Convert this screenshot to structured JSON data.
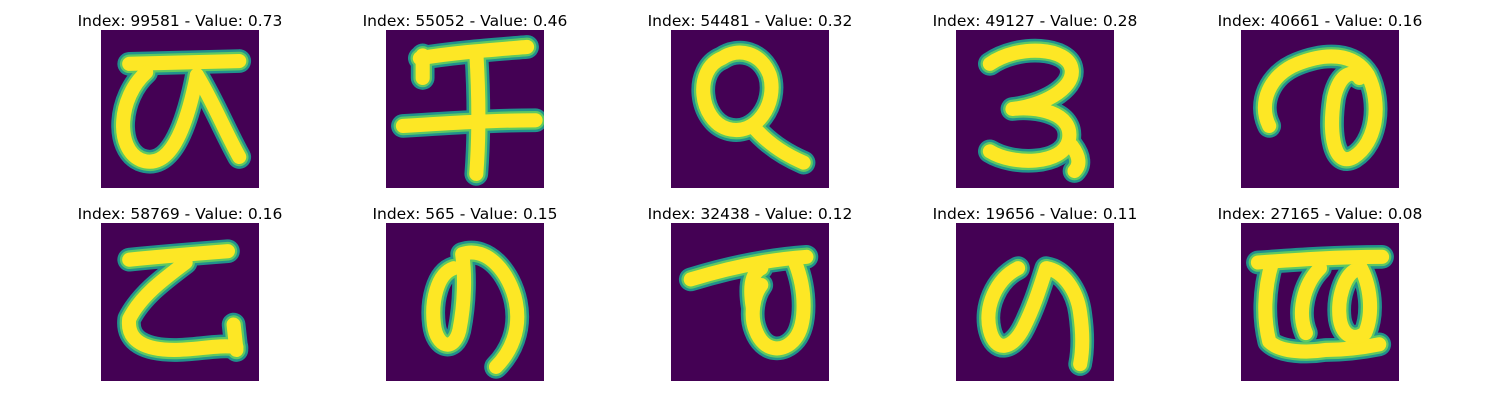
{
  "colors": {
    "background": "#440154",
    "stroke_main": "#fde725",
    "stroke_mid": "#5ec962",
    "stroke_edge": "#21918c"
  },
  "panels": [
    {
      "index": "99581",
      "value": "0.73",
      "title": "Index: 99581 - Value: 0.73",
      "glyph": "glyph-curl-loop"
    },
    {
      "index": "55052",
      "value": "0.46",
      "title": "Index: 55052 - Value: 0.46",
      "glyph": "glyph-cross-bars"
    },
    {
      "index": "54481",
      "value": "0.32",
      "title": "Index: 54481 - Value: 0.32",
      "glyph": "glyph-q-shape"
    },
    {
      "index": "49127",
      "value": "0.28",
      "title": "Index: 49127 - Value: 0.28",
      "glyph": "glyph-three-shape"
    },
    {
      "index": "40661",
      "value": "0.16",
      "title": "Index: 40661 - Value: 0.16",
      "glyph": "glyph-ro-loop"
    },
    {
      "index": "58769",
      "value": "0.16",
      "title": "Index: 58769 - Value: 0.16",
      "glyph": "glyph-ko-shape"
    },
    {
      "index": "565",
      "value": "0.15",
      "title": "Index: 565 - Value: 0.15",
      "glyph": "glyph-no-shape"
    },
    {
      "index": "32438",
      "value": "0.12",
      "title": "Index: 32438 - Value: 0.12",
      "glyph": "glyph-te-loop"
    },
    {
      "index": "19656",
      "value": "0.11",
      "title": "Index: 19656 - Value: 0.11",
      "glyph": "glyph-no-shape-2"
    },
    {
      "index": "27165",
      "value": "0.08",
      "title": "Index: 27165 - Value: 0.08",
      "glyph": "glyph-sa-shape"
    }
  ]
}
